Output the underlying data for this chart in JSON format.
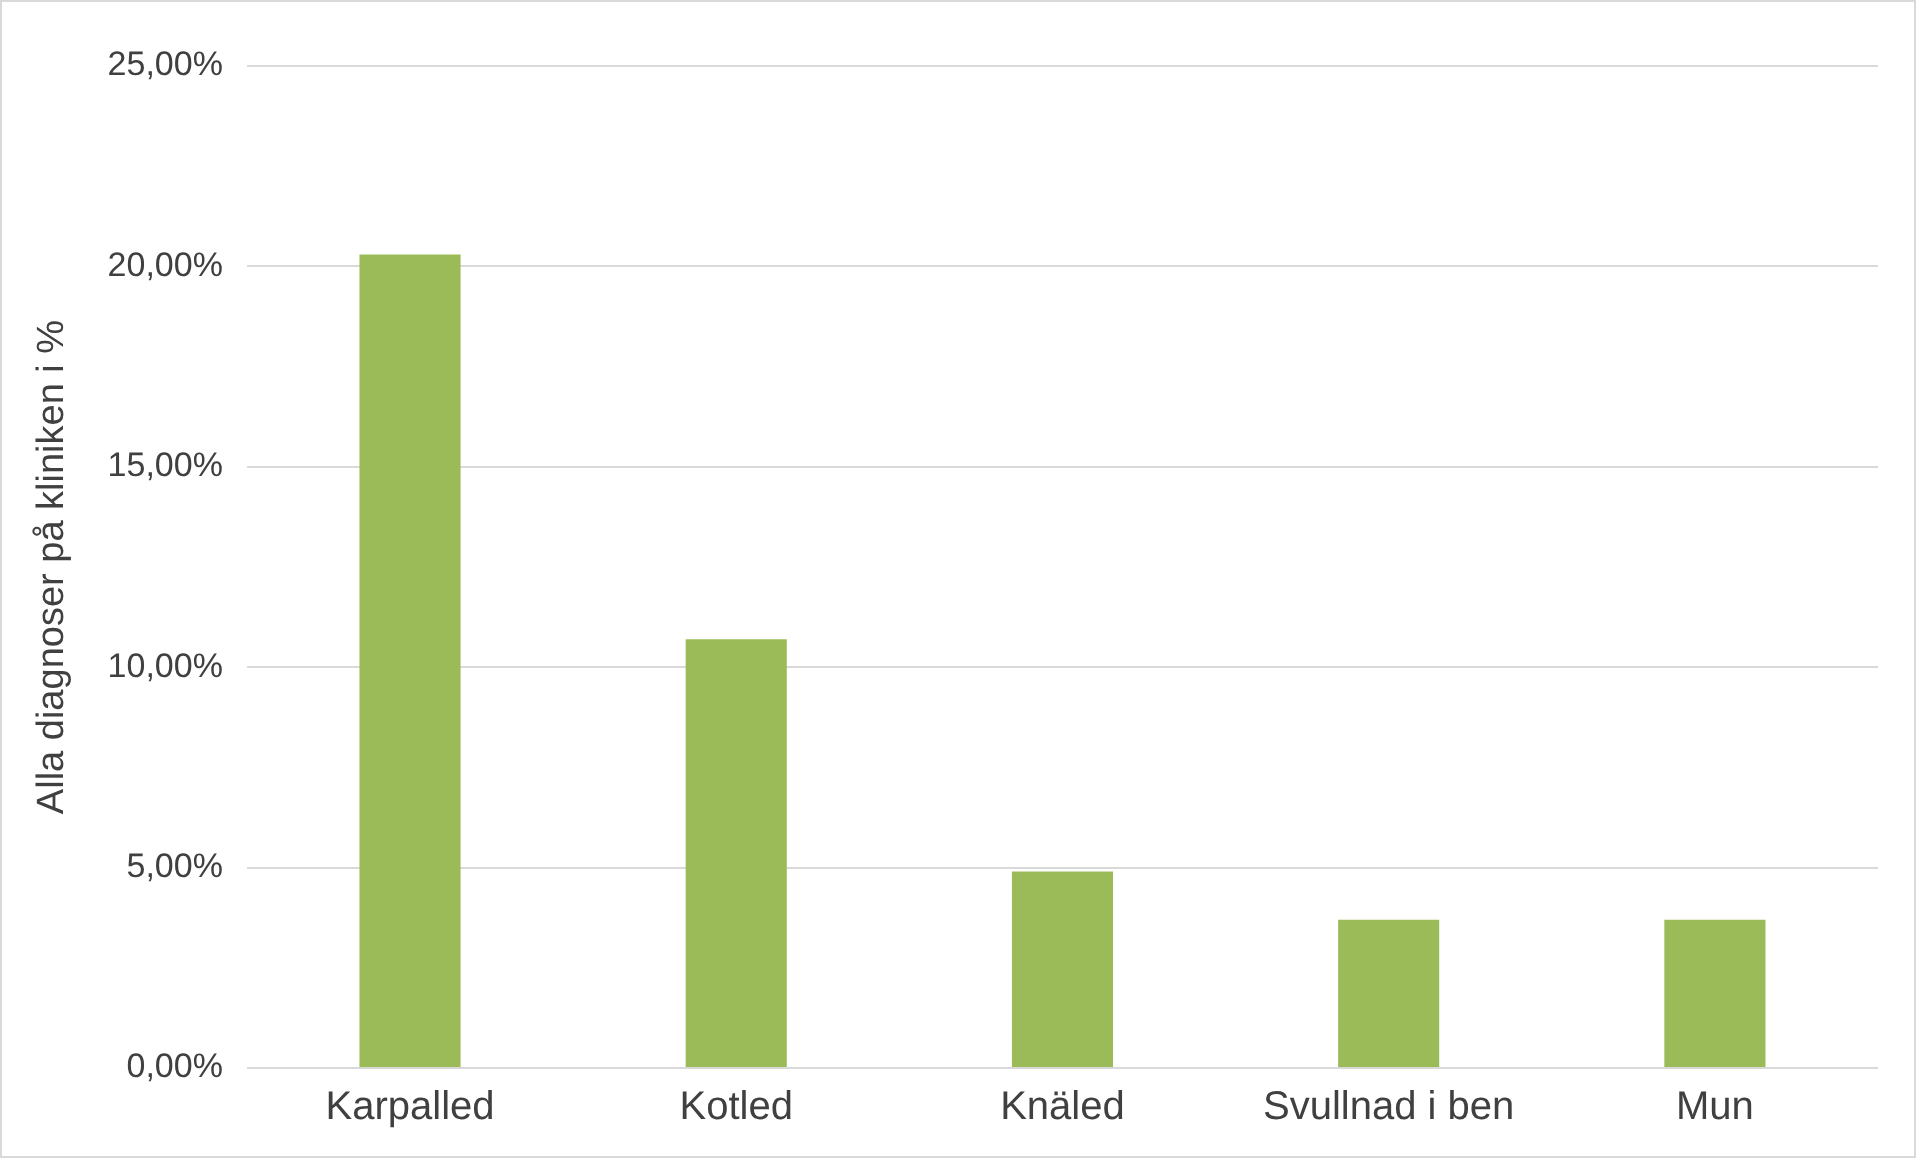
{
  "chart_data": {
    "type": "bar",
    "ylabel": "Alla diagnoser på kliniken i %",
    "categories": [
      "Karpalled",
      "Kotled",
      "Knäled",
      "Svullnad i ben",
      "Mun"
    ],
    "values": [
      20.3,
      10.7,
      4.9,
      3.7,
      3.7
    ],
    "color": "#9bbb59",
    "ylim": [
      0,
      25
    ],
    "yticks": [
      {
        "value": 0,
        "label": "0,00%"
      },
      {
        "value": 5,
        "label": "5,00%"
      },
      {
        "value": 10,
        "label": "10,00%"
      },
      {
        "value": 15,
        "label": "15,00%"
      },
      {
        "value": 20,
        "label": "20,00%"
      },
      {
        "value": 25,
        "label": "25,00%"
      }
    ],
    "grid": "y",
    "legend": false
  }
}
